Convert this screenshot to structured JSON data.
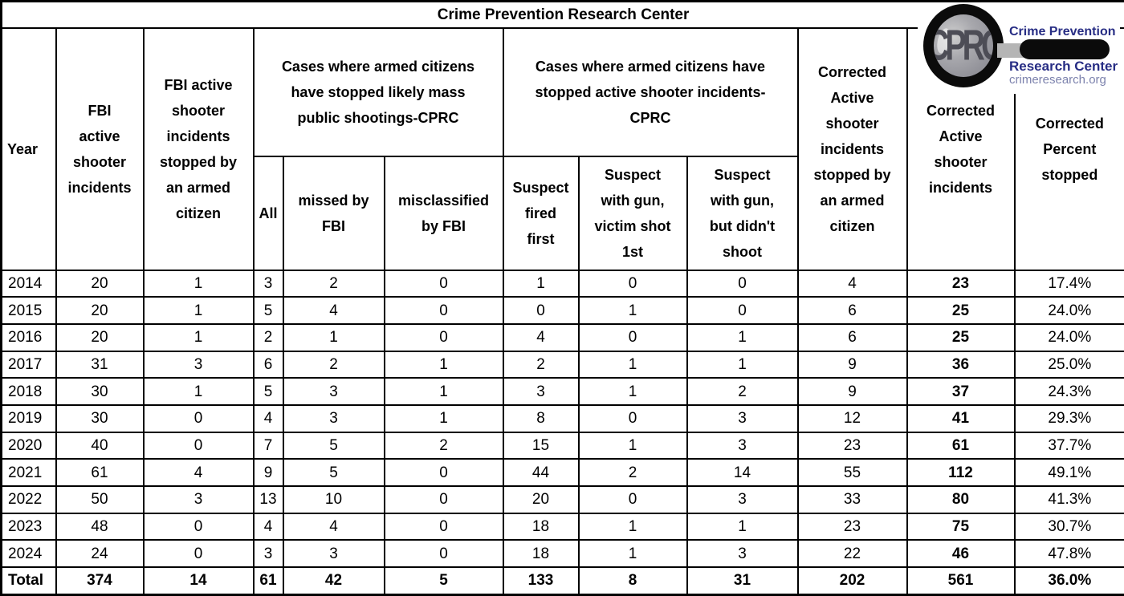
{
  "title": "Crime Prevention Research Center",
  "logo": {
    "glass_text": "CPRC",
    "line1": "Crime Prevention",
    "line2": "Research Center",
    "line3": "crimeresearch.org",
    "navy_color": "#272d84",
    "url_color": "#7c82ad"
  },
  "headers": {
    "year": "Year",
    "fbi_incidents": "FBI\nactive\nshooter\nincidents",
    "fbi_stopped": "FBI active\nshooter\nincidents\nstopped by\nan armed\ncitizen",
    "group_mass": "Cases where armed citizens\nhave stopped likely mass\npublic shootings-CPRC",
    "group_active": "Cases where armed citizens have\nstopped active shooter incidents-\nCPRC",
    "all": "All",
    "missed": "missed by\nFBI",
    "misclassified": "misclassified\nby FBI",
    "fired_first": "Suspect\nfired\nfirst",
    "victim_shot": "Suspect\nwith gun,\nvictim shot\n1st",
    "didnt_shoot": "Suspect\nwith gun,\nbut didn't\nshoot",
    "corrected_stopped": "Corrected\nActive\nshooter\nincidents\nstopped by\nan armed\ncitizen",
    "corrected_incidents": "Corrected\nActive\nshooter\nincidents",
    "corrected_percent": "Corrected\nPercent\nstopped"
  },
  "chart_data": {
    "type": "table",
    "title": "Crime Prevention Research Center",
    "columns": [
      "Year",
      "FBI active shooter incidents",
      "FBI active shooter incidents stopped by an armed citizen",
      "Cases where armed citizens have stopped likely mass public shootings-CPRC: All",
      "Cases where armed citizens have stopped likely mass public shootings-CPRC: missed by FBI",
      "Cases where armed citizens have stopped likely mass public shootings-CPRC: misclassified by FBI",
      "Cases where armed citizens have stopped active shooter incidents-CPRC: Suspect fired first",
      "Cases where armed citizens have stopped active shooter incidents-CPRC: Suspect with gun, victim shot 1st",
      "Cases where armed citizens have stopped active shooter incidents-CPRC: Suspect with gun, but didn't shoot",
      "Corrected Active shooter incidents stopped by an armed citizen",
      "Corrected Active shooter incidents",
      "Corrected Percent stopped"
    ],
    "rows": [
      [
        "2014",
        20,
        1,
        3,
        2,
        0,
        1,
        0,
        0,
        4,
        23,
        "17.4%"
      ],
      [
        "2015",
        20,
        1,
        5,
        4,
        0,
        0,
        1,
        0,
        6,
        25,
        "24.0%"
      ],
      [
        "2016",
        20,
        1,
        2,
        1,
        0,
        4,
        0,
        1,
        6,
        25,
        "24.0%"
      ],
      [
        "2017",
        31,
        3,
        6,
        2,
        1,
        2,
        1,
        1,
        9,
        36,
        "25.0%"
      ],
      [
        "2018",
        30,
        1,
        5,
        3,
        1,
        3,
        1,
        2,
        9,
        37,
        "24.3%"
      ],
      [
        "2019",
        30,
        0,
        4,
        3,
        1,
        8,
        0,
        3,
        12,
        41,
        "29.3%"
      ],
      [
        "2020",
        40,
        0,
        7,
        5,
        2,
        15,
        1,
        3,
        23,
        61,
        "37.7%"
      ],
      [
        "2021",
        61,
        4,
        9,
        5,
        0,
        44,
        2,
        14,
        55,
        112,
        "49.1%"
      ],
      [
        "2022",
        50,
        3,
        13,
        10,
        0,
        20,
        0,
        3,
        33,
        80,
        "41.3%"
      ],
      [
        "2023",
        48,
        0,
        4,
        4,
        0,
        18,
        1,
        1,
        23,
        75,
        "30.7%"
      ],
      [
        "2024",
        24,
        0,
        3,
        3,
        0,
        18,
        1,
        3,
        22,
        46,
        "47.8%"
      ],
      [
        "Total",
        374,
        14,
        61,
        42,
        5,
        133,
        8,
        31,
        202,
        561,
        "36.0%"
      ]
    ],
    "bold_column_index": 10,
    "grid": true,
    "legend_position": "none"
  }
}
